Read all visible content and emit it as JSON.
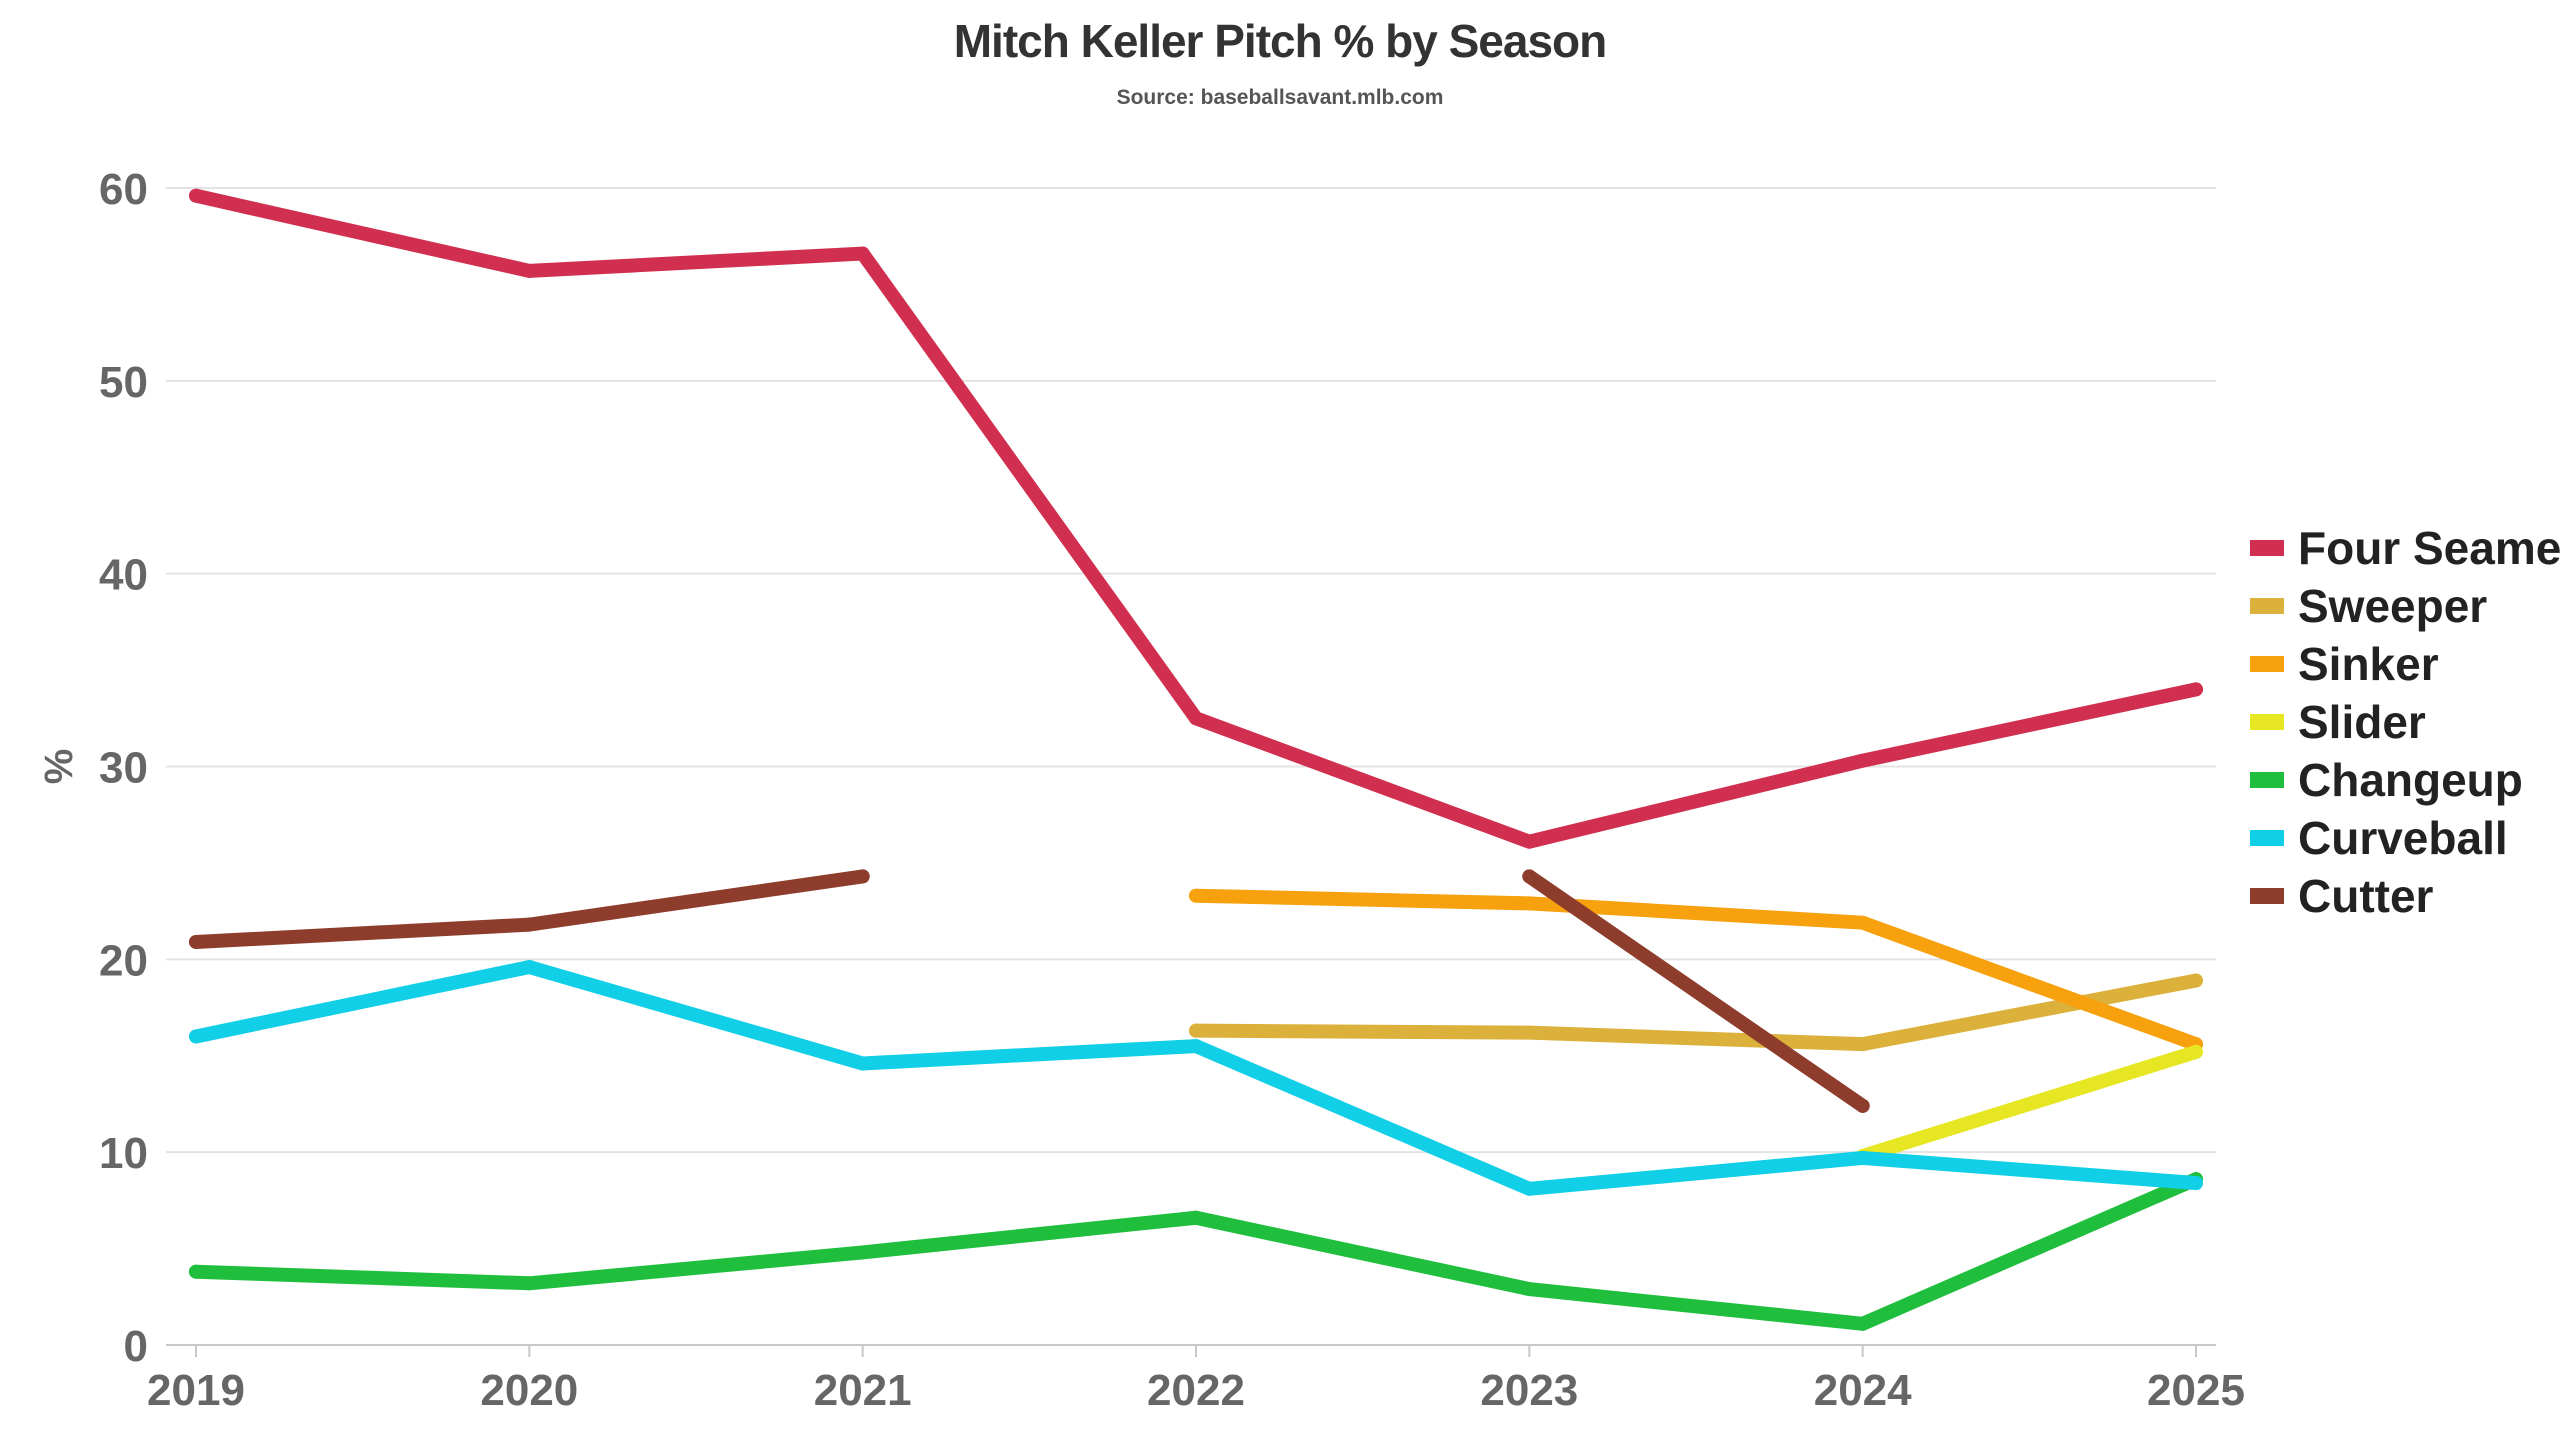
{
  "chart_data": {
    "type": "line",
    "title": "Mitch Keller Pitch % by Season",
    "subtitle": "Source: baseballsavant.mlb.com",
    "xlabel": "",
    "ylabel": "%",
    "x": [
      "2019",
      "2020",
      "2021",
      "2022",
      "2023",
      "2024",
      "2025"
    ],
    "yticks": [
      "0",
      "10",
      "20",
      "30",
      "40",
      "50",
      "60"
    ],
    "ylim": [
      0,
      60
    ],
    "grid": "horizontal",
    "legend_position": "right",
    "series": [
      {
        "name": "Four Seamer",
        "color": "#d12f4f",
        "values": [
          59.6,
          55.7,
          56.6,
          32.5,
          26.1,
          30.3,
          34.0
        ]
      },
      {
        "name": "Sweeper",
        "color": "#dbb13c",
        "values": [
          null,
          null,
          null,
          16.3,
          16.2,
          15.6,
          18.9
        ]
      },
      {
        "name": "Sinker",
        "color": "#f7a10f",
        "values": [
          null,
          null,
          null,
          23.3,
          22.9,
          21.9,
          15.6
        ]
      },
      {
        "name": "Slider",
        "color": "#e6e623",
        "values": [
          null,
          null,
          null,
          null,
          null,
          9.8,
          15.2
        ]
      },
      {
        "name": "Changeup",
        "color": "#1fbe3d",
        "values": [
          3.8,
          3.2,
          4.8,
          6.6,
          2.9,
          1.1,
          8.6
        ]
      },
      {
        "name": "Curveball",
        "color": "#10cfe6",
        "values": [
          16.0,
          19.6,
          14.6,
          15.5,
          8.1,
          9.7,
          8.4
        ]
      },
      {
        "name": "Cutter",
        "color": "#8e3c2c",
        "values": [
          20.9,
          21.8,
          24.3,
          null,
          24.3,
          12.4,
          null
        ]
      }
    ]
  }
}
